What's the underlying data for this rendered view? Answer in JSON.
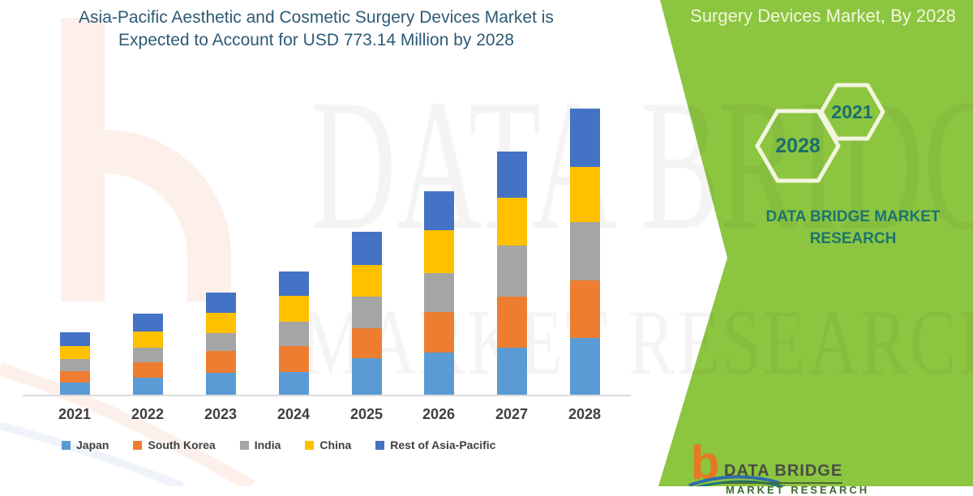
{
  "title": {
    "line1": "Asia-Pacific Aesthetic and Cosmetic Surgery Devices Market is",
    "line2": "Expected to Account for USD 773.14 Million by 2028"
  },
  "banner": {
    "label": "Surgery Devices Market, By 2028"
  },
  "hexagons": {
    "large_label": "2028",
    "small_label": "2021"
  },
  "brand_panel": {
    "line1": "DATA BRIDGE MARKET",
    "line2": "RESEARCH"
  },
  "watermark": {
    "line1": "DATA BRIDGE",
    "line2": "MARKET RESEARCH"
  },
  "footer": {
    "brand": "DATA BRIDGE",
    "sub": "MARKET RESEARCH",
    "icon": "data-bridge-b-logo"
  },
  "colors": {
    "panel_green": "#8CC540",
    "banner_text_cream": "#F2F7DB",
    "hexagon_stroke_cream": "#F2F6DF",
    "brand_teal": "#1C7470",
    "title_blue": "#2D5A76",
    "axis_gray": "#DCDCDC",
    "label_gray": "#3F3F3F",
    "logo_orange": "#E87722"
  },
  "chart_data": {
    "type": "bar",
    "stacked": true,
    "title": "",
    "xlabel": "",
    "ylabel": "",
    "unit": "USD Million",
    "grid": false,
    "legend_position": "bottom",
    "ylim": [
      0,
      800
    ],
    "categories": [
      "2021",
      "2022",
      "2023",
      "2024",
      "2025",
      "2026",
      "2027",
      "2028"
    ],
    "series": [
      {
        "name": "Japan",
        "color": "#5B9BD5",
        "values": [
          33,
          46,
          59,
          61,
          99,
          114,
          127,
          153
        ]
      },
      {
        "name": "South Korea",
        "color": "#ED7D31",
        "values": [
          31,
          42,
          59,
          70,
          81,
          110,
          138,
          155.5
        ]
      },
      {
        "name": "India",
        "color": "#A5A5A5",
        "values": [
          33,
          39,
          48,
          66,
          85,
          105,
          138,
          157.5
        ]
      },
      {
        "name": "China",
        "color": "#FFC000",
        "values": [
          35,
          44,
          55,
          70,
          85,
          116,
          129,
          149
        ]
      },
      {
        "name": "Rest of Asia-Pacific",
        "color": "#4472C4",
        "values": [
          37,
          48,
          55,
          66,
          90,
          105,
          125,
          158.14
        ]
      }
    ],
    "totals_by_year": [
      169,
      219,
      276,
      333,
      440,
      550,
      657,
      773.14
    ],
    "highlight_value": "USD 773.14 Million by 2028"
  }
}
